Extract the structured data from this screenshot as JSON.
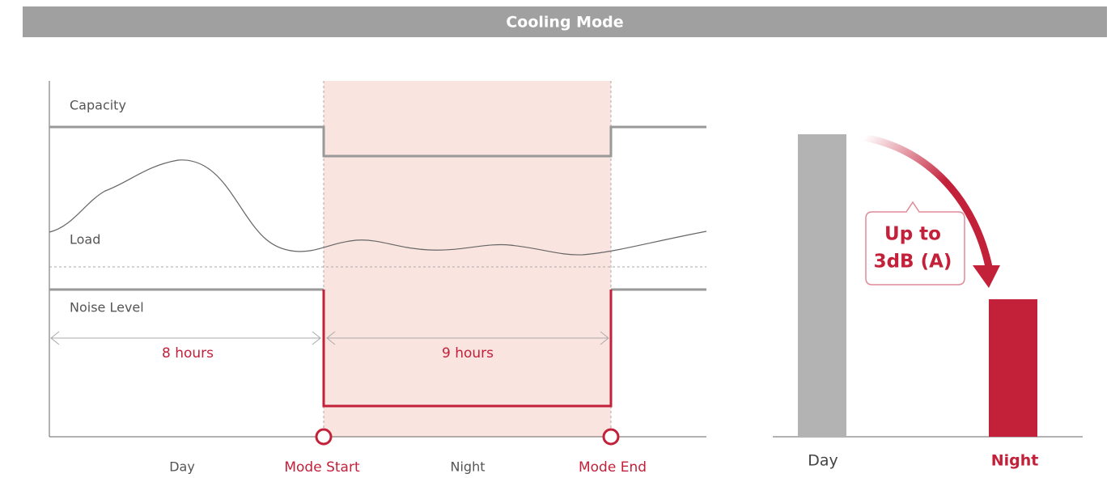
{
  "header": {
    "title": "Cooling Mode"
  },
  "timeline": {
    "labels": {
      "capacity": "Capacity",
      "load": "Load",
      "noise": "Noise Level"
    },
    "durations": [
      "8 hours",
      "9 hours"
    ],
    "axis_labels": [
      "Day",
      "Mode Start",
      "Night",
      "Mode End"
    ]
  },
  "comparison": {
    "callout": [
      "Up to",
      "3dB (A)"
    ],
    "categories": [
      "Day",
      "Night"
    ]
  }
}
